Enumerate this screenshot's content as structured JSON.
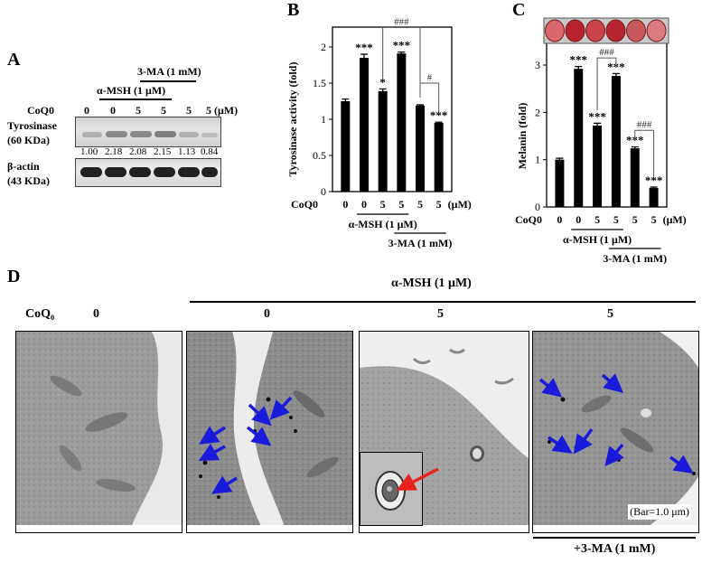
{
  "panelA": {
    "letter": "A",
    "ma_label": "3-MA (1 mM)",
    "msh_label": "α-MSH (1 μM)",
    "coq_label": "CoQ0",
    "doses": [
      "0",
      "0",
      "5",
      "5",
      "5",
      "5"
    ],
    "unit": "(μM)",
    "tyrosinase_label": "Tyrosinase",
    "tyrosinase_kda": "(60 KDa)",
    "band_values": [
      "1.00",
      "2.18",
      "2.08",
      "2.15",
      "1.13",
      "0.84"
    ],
    "actin_label": "β-actin",
    "actin_kda": "(43 KDa)"
  },
  "chart_data": [
    {
      "type": "bar",
      "panel": "B",
      "ylabel": "Tyrosinase activity (fold)",
      "ylim": [
        0,
        2
      ],
      "yticks": [
        "0",
        "0.5",
        "1",
        "1.5",
        "2"
      ],
      "x_row_label": "CoQ0",
      "categories": [
        "0",
        "0",
        "5",
        "5",
        "5",
        "5"
      ],
      "unit": "(μM)",
      "values": [
        1.25,
        1.85,
        1.39,
        1.91,
        1.19,
        0.95
      ],
      "errors": [
        0.03,
        0.05,
        0.03,
        0.02,
        0.01,
        0.01
      ],
      "annotations": [
        "",
        "***",
        "*",
        "***",
        "",
        "***"
      ],
      "brackets": [
        "###",
        "#"
      ],
      "msh_label": "α-MSH (1 μM)",
      "ma_label": "3-MA (1 mM)"
    },
    {
      "type": "bar",
      "panel": "C",
      "ylabel": "Melanin (fold)",
      "ylim": [
        0,
        3
      ],
      "yticks": [
        "0",
        "1",
        "2",
        "3"
      ],
      "x_row_label": "CoQ0",
      "categories": [
        "0",
        "0",
        "5",
        "5",
        "5",
        "5"
      ],
      "unit": "(μM)",
      "values": [
        1.0,
        2.92,
        1.72,
        2.77,
        1.24,
        0.4
      ],
      "errors": [
        0.03,
        0.05,
        0.05,
        0.05,
        0.03,
        0.02
      ],
      "annotations": [
        "",
        "***",
        "***",
        "***",
        "***",
        "***"
      ],
      "brackets": [
        "###",
        "###"
      ],
      "msh_label": "α-MSH (1 μM)",
      "ma_label": "3-MA (1 mM)",
      "well_colors": [
        "#d9676b",
        "#b8222d",
        "#c8434a",
        "#b5242f",
        "#c85a5d",
        "#d97a7e"
      ]
    }
  ],
  "panelB": {
    "letter": "B"
  },
  "panelC": {
    "letter": "C"
  },
  "panelD": {
    "letter": "D",
    "msh_label": "α-MSH (1 μM)",
    "coq_label": "CoQ₀",
    "doses": [
      "0",
      "0",
      "5",
      "5"
    ],
    "bar_label": "(Bar=1.0 μm)",
    "ma_label": "+3-MA (1 mM)",
    "arrow_color": "#1a1adb",
    "inset_arrow_color": "#e8211c"
  }
}
